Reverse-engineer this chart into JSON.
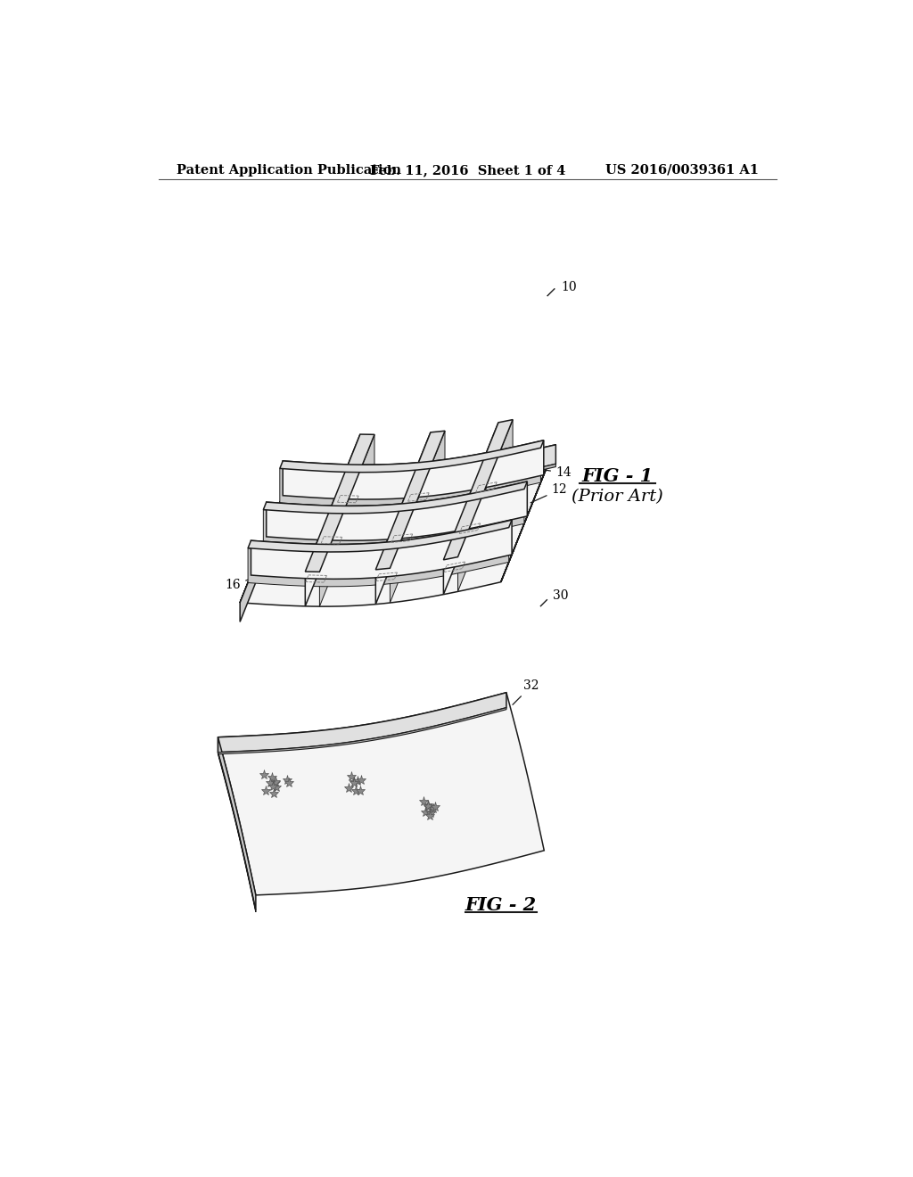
{
  "background_color": "#ffffff",
  "header_left": "Patent Application Publication",
  "header_center": "Feb. 11, 2016  Sheet 1 of 4",
  "header_right": "US 2016/0039361 A1",
  "fig1_label": "FIG - 1",
  "fig1_sublabel": "(Prior Art)",
  "fig2_label": "FIG - 2",
  "line_color": "#1a1a1a",
  "face_light": "#f5f5f5",
  "face_mid": "#e0e0e0",
  "face_dark": "#cccccc",
  "face_darker": "#bbbbbb"
}
